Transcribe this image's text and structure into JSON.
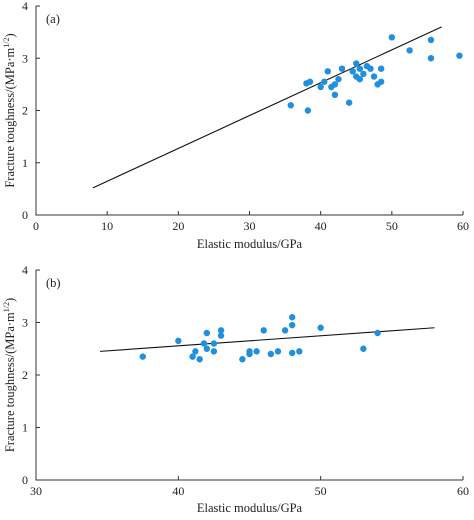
{
  "chart_data": [
    {
      "type": "scatter",
      "panel_label": "(a)",
      "xlabel": "Elastic modulus/GPa",
      "ylabel_main": "Fracture toughness/(MPa·m",
      "ylabel_sup": "1/2",
      "ylabel_end": ")",
      "xlim": [
        0,
        60
      ],
      "ylim": [
        0,
        4
      ],
      "x_ticks": [
        0,
        10,
        20,
        30,
        40,
        50,
        60
      ],
      "y_ticks": [
        0,
        1,
        2,
        3,
        4
      ],
      "grid": false,
      "point_color": "#1f8fdf",
      "line_color": "#111111",
      "series": [
        {
          "points": [
            [
              35.8,
              2.1
            ],
            [
              38.0,
              2.52
            ],
            [
              38.5,
              2.55
            ],
            [
              38.2,
              2.0
            ],
            [
              40.0,
              2.45
            ],
            [
              40.5,
              2.55
            ],
            [
              41.0,
              2.75
            ],
            [
              41.5,
              2.45
            ],
            [
              42.0,
              2.5
            ],
            [
              42.0,
              2.3
            ],
            [
              42.5,
              2.6
            ],
            [
              43.0,
              2.8
            ],
            [
              44.0,
              2.15
            ],
            [
              44.5,
              2.75
            ],
            [
              45.0,
              2.9
            ],
            [
              45.0,
              2.65
            ],
            [
              45.5,
              2.6
            ],
            [
              45.5,
              2.8
            ],
            [
              46.0,
              2.7
            ],
            [
              46.5,
              2.85
            ],
            [
              47.0,
              2.8
            ],
            [
              47.5,
              2.65
            ],
            [
              48.0,
              2.5
            ],
            [
              48.5,
              2.55
            ],
            [
              48.5,
              2.8
            ],
            [
              50.0,
              3.4
            ],
            [
              52.5,
              3.15
            ],
            [
              55.5,
              3.35
            ],
            [
              55.5,
              3.0
            ],
            [
              59.5,
              3.05
            ]
          ]
        }
      ],
      "fit_line": {
        "x": [
          8,
          57
        ],
        "y": [
          0.52,
          3.6
        ]
      }
    },
    {
      "type": "scatter",
      "panel_label": "(b)",
      "xlabel": "Elastic modulus/GPa",
      "ylabel_main": "Fracture toughness/(MPa·m",
      "ylabel_sup": "1/2",
      "ylabel_end": ")",
      "xlim": [
        30,
        60
      ],
      "ylim": [
        0,
        4
      ],
      "x_ticks": [
        30,
        40,
        50,
        60
      ],
      "y_ticks": [
        0,
        1,
        2,
        3,
        4
      ],
      "grid": false,
      "point_color": "#1f8fdf",
      "line_color": "#111111",
      "series": [
        {
          "points": [
            [
              37.5,
              2.35
            ],
            [
              40.0,
              2.65
            ],
            [
              41.0,
              2.35
            ],
            [
              41.2,
              2.45
            ],
            [
              41.5,
              2.3
            ],
            [
              41.8,
              2.6
            ],
            [
              42.0,
              2.8
            ],
            [
              42.0,
              2.5
            ],
            [
              42.5,
              2.45
            ],
            [
              42.5,
              2.6
            ],
            [
              43.0,
              2.85
            ],
            [
              43.0,
              2.75
            ],
            [
              44.5,
              2.3
            ],
            [
              45.0,
              2.4
            ],
            [
              45.0,
              2.45
            ],
            [
              45.5,
              2.45
            ],
            [
              46.0,
              2.85
            ],
            [
              46.5,
              2.4
            ],
            [
              47.0,
              2.45
            ],
            [
              47.5,
              2.85
            ],
            [
              48.0,
              2.95
            ],
            [
              48.0,
              3.1
            ],
            [
              48.5,
              2.45
            ],
            [
              48.0,
              2.42
            ],
            [
              50.0,
              2.9
            ],
            [
              53.0,
              2.5
            ],
            [
              54.0,
              2.8
            ]
          ]
        }
      ],
      "fit_line": {
        "x": [
          34.5,
          58
        ],
        "y": [
          2.45,
          2.9
        ]
      }
    }
  ]
}
